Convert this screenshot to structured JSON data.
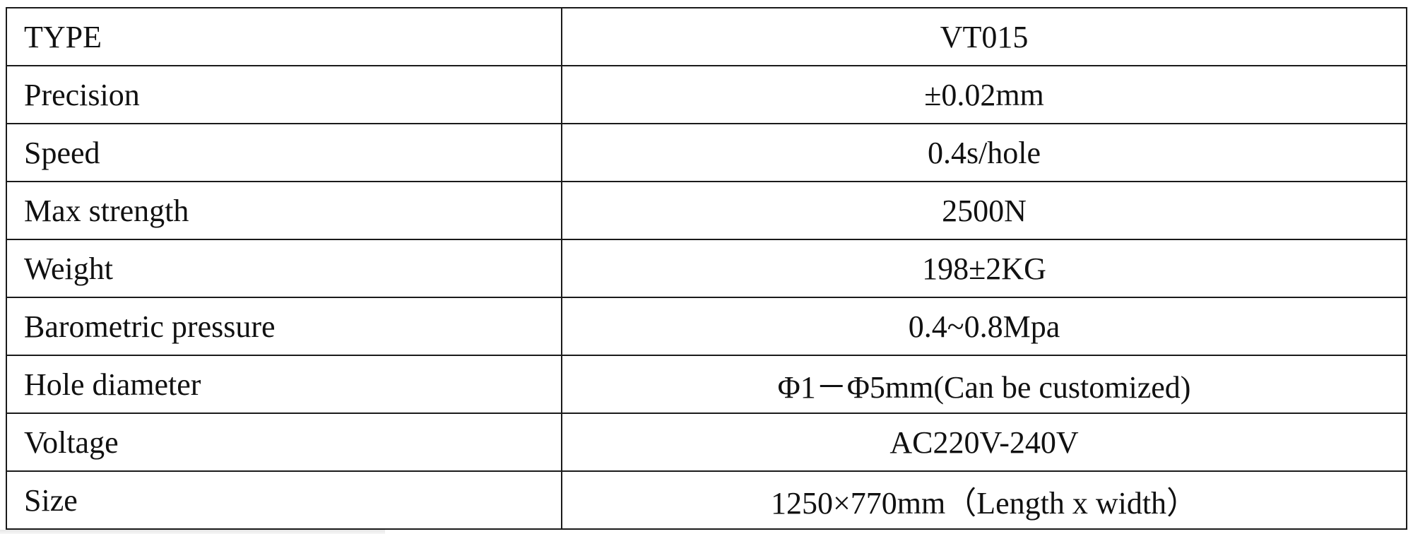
{
  "table": {
    "rows": [
      [
        "TYPE",
        "VT015"
      ],
      [
        "Precision",
        "±0.02mm"
      ],
      [
        "Speed",
        "0.4s/hole"
      ],
      [
        "Max strength",
        "2500N"
      ],
      [
        "Weight",
        "198±2KG"
      ],
      [
        "Barometric pressure",
        "0.4~0.8Mpa"
      ],
      [
        "Hole diameter",
        "Φ1－Φ5mm(Can be customized)"
      ],
      [
        "Voltage",
        "AC220V-240V"
      ],
      [
        "Size",
        "1250×770mm（Length x width）"
      ]
    ]
  }
}
